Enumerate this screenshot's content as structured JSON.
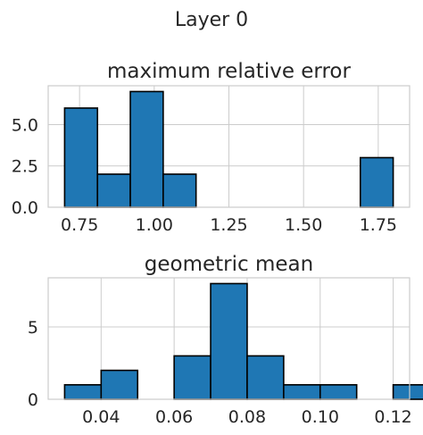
{
  "figure_title": "Layer 0",
  "bar_color": "#1f77b4",
  "chart_data": [
    {
      "type": "bar",
      "subtype": "histogram",
      "title": "maximum relative error",
      "xlabel": "",
      "ylabel": "",
      "bin_edges": [
        0.7,
        0.81,
        0.92,
        1.03,
        1.14,
        1.25,
        1.36,
        1.47,
        1.58,
        1.69,
        1.8
      ],
      "counts": [
        6,
        2,
        7,
        2,
        0,
        0,
        0,
        0,
        0,
        3
      ],
      "xlim": [
        0.645,
        1.855
      ],
      "ylim": [
        0,
        7.35
      ],
      "xticks": [
        0.75,
        1.0,
        1.25,
        1.5,
        1.75
      ],
      "xtick_labels": [
        "0.75",
        "1.00",
        "1.25",
        "1.50",
        "1.75"
      ],
      "yticks": [
        0,
        2.5,
        5.0
      ],
      "ytick_labels": [
        "0.0",
        "2.5",
        "5.0"
      ],
      "grid": true
    },
    {
      "type": "bar",
      "subtype": "histogram",
      "title": "geometric mean",
      "xlabel": "",
      "ylabel": "",
      "bin_edges": [
        0.03,
        0.04,
        0.05,
        0.06,
        0.07,
        0.08,
        0.09,
        0.1,
        0.11,
        0.12,
        0.13
      ],
      "counts": [
        1,
        2,
        0,
        3,
        8,
        3,
        1,
        1,
        0,
        1
      ],
      "xlim": [
        0.0255,
        0.1245
      ],
      "ylim": [
        0,
        8.4
      ],
      "xticks": [
        0.04,
        0.06,
        0.08,
        0.1,
        0.12
      ],
      "xtick_labels": [
        "0.04",
        "0.06",
        "0.08",
        "0.10",
        "0.12"
      ],
      "yticks": [
        0,
        5
      ],
      "ytick_labels": [
        "0",
        "5"
      ],
      "grid": true
    }
  ]
}
